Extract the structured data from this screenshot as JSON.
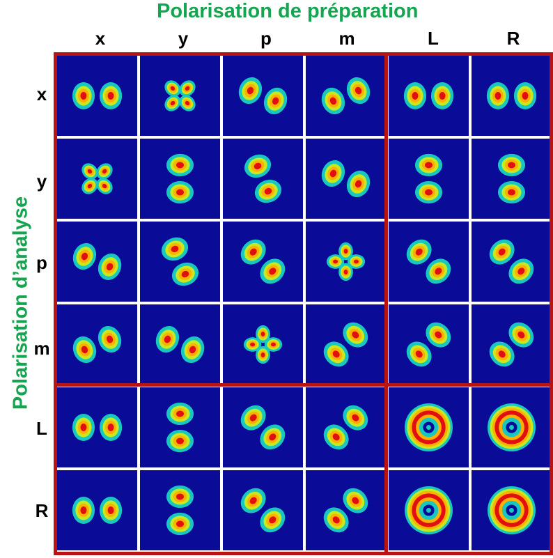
{
  "title_top": "Polarisation de préparation",
  "title_left": "Polarisation d’analyse",
  "columns": [
    "x",
    "y",
    "p",
    "m",
    "L",
    "R"
  ],
  "rows": [
    "x",
    "y",
    "p",
    "m",
    "L",
    "R"
  ],
  "colors": {
    "title": "#15a550",
    "cell_background": "#0a0b96",
    "frame": "#b81414"
  }
}
